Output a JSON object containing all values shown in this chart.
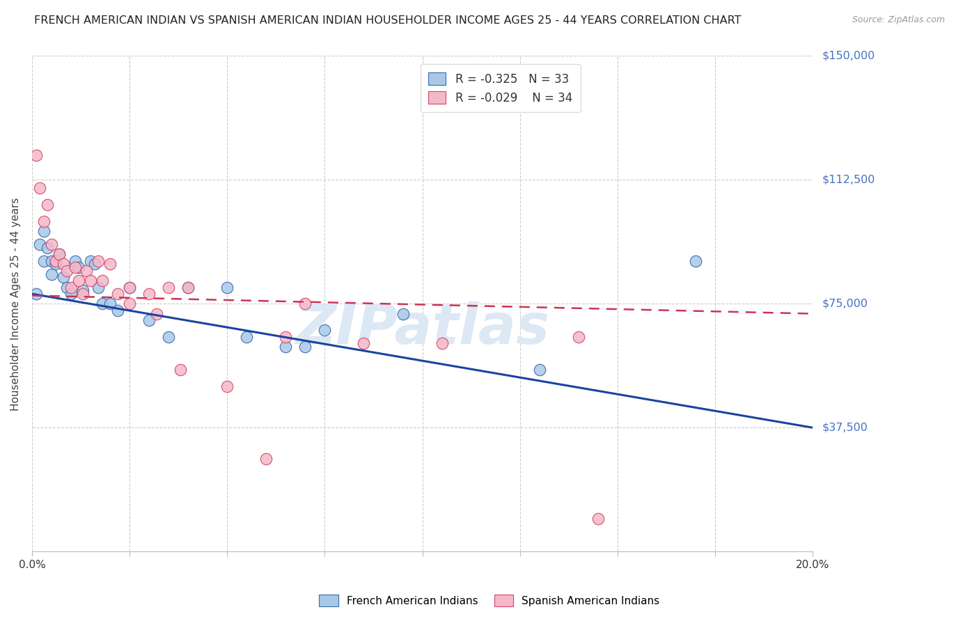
{
  "title": "FRENCH AMERICAN INDIAN VS SPANISH AMERICAN INDIAN HOUSEHOLDER INCOME AGES 25 - 44 YEARS CORRELATION CHART",
  "source": "Source: ZipAtlas.com",
  "ylabel": "Householder Income Ages 25 - 44 years",
  "xlim": [
    0.0,
    0.2
  ],
  "ylim": [
    0,
    150000
  ],
  "yticks": [
    0,
    37500,
    75000,
    112500,
    150000
  ],
  "ytick_labels": [
    "",
    "$37,500",
    "$75,000",
    "$112,500",
    "$150,000"
  ],
  "xtick_positions": [
    0.0,
    0.025,
    0.05,
    0.075,
    0.1,
    0.125,
    0.15,
    0.175,
    0.2
  ],
  "blue_R": -0.325,
  "blue_N": 33,
  "pink_R": -0.029,
  "pink_N": 34,
  "blue_face_color": "#a8c8e8",
  "blue_edge_color": "#3a6aaa",
  "pink_face_color": "#f5b8c8",
  "pink_edge_color": "#d04868",
  "blue_line_color": "#1a44a0",
  "pink_line_color": "#cc3355",
  "right_label_color": "#4472c4",
  "watermark_color": "#dde8f5",
  "blue_line_x0": 0.0,
  "blue_line_y0": 78000,
  "blue_line_x1": 0.2,
  "blue_line_y1": 37500,
  "pink_line_x0": 0.0,
  "pink_line_y0": 77500,
  "pink_line_x1": 0.2,
  "pink_line_y1": 72000,
  "blue_scatter_x": [
    0.001,
    0.002,
    0.003,
    0.003,
    0.004,
    0.005,
    0.005,
    0.006,
    0.007,
    0.008,
    0.009,
    0.01,
    0.011,
    0.012,
    0.013,
    0.015,
    0.016,
    0.017,
    0.018,
    0.02,
    0.022,
    0.025,
    0.03,
    0.035,
    0.04,
    0.05,
    0.055,
    0.065,
    0.07,
    0.075,
    0.095,
    0.13,
    0.17
  ],
  "blue_scatter_y": [
    78000,
    93000,
    97000,
    88000,
    92000,
    88000,
    84000,
    87000,
    90000,
    83000,
    80000,
    78000,
    88000,
    86000,
    79000,
    88000,
    87000,
    80000,
    75000,
    75000,
    73000,
    80000,
    70000,
    65000,
    80000,
    80000,
    65000,
    62000,
    62000,
    67000,
    72000,
    55000,
    88000
  ],
  "pink_scatter_x": [
    0.001,
    0.002,
    0.003,
    0.004,
    0.005,
    0.006,
    0.007,
    0.008,
    0.009,
    0.01,
    0.011,
    0.012,
    0.013,
    0.014,
    0.015,
    0.017,
    0.018,
    0.02,
    0.022,
    0.025,
    0.025,
    0.03,
    0.032,
    0.035,
    0.038,
    0.04,
    0.05,
    0.06,
    0.065,
    0.07,
    0.085,
    0.105,
    0.14,
    0.145
  ],
  "pink_scatter_y": [
    120000,
    110000,
    100000,
    105000,
    93000,
    88000,
    90000,
    87000,
    85000,
    80000,
    86000,
    82000,
    78000,
    85000,
    82000,
    88000,
    82000,
    87000,
    78000,
    75000,
    80000,
    78000,
    72000,
    80000,
    55000,
    80000,
    50000,
    28000,
    65000,
    75000,
    63000,
    63000,
    65000,
    10000
  ]
}
